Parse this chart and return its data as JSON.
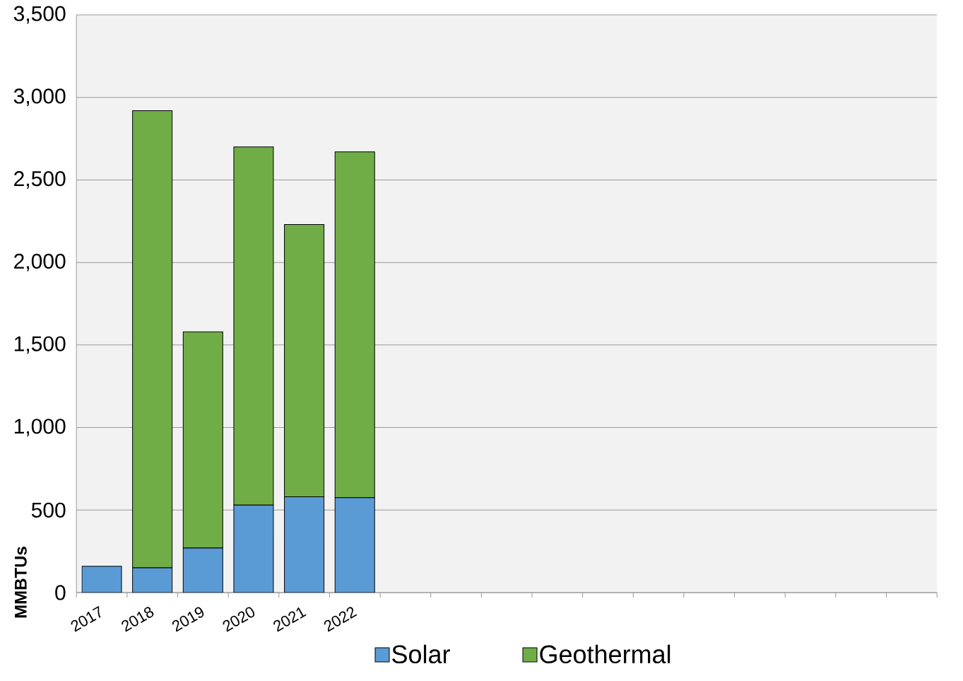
{
  "chart_data": {
    "type": "bar",
    "stacked": true,
    "ylabel": "MMBTUs",
    "categories": [
      "2017",
      "2018",
      "2019",
      "2020",
      "2021",
      "2022",
      null,
      null,
      null,
      null,
      null,
      null,
      null,
      null,
      null,
      null,
      null
    ],
    "series": [
      {
        "name": "Solar",
        "color": "#5b9bd5",
        "values": [
          160,
          150,
          270,
          530,
          580,
          575,
          null,
          null,
          null,
          null,
          null,
          null,
          null,
          null,
          null,
          null,
          null
        ]
      },
      {
        "name": "Geothermal",
        "color": "#70ad47",
        "values": [
          null,
          2770,
          1310,
          2170,
          1650,
          2095,
          null,
          null,
          null,
          null,
          null,
          null,
          null,
          null,
          null,
          null,
          null
        ]
      }
    ],
    "ylim": [
      0,
      3500
    ],
    "yticks": [
      0,
      {
        "value": 500,
        "label": "500"
      },
      {
        "value": 1000,
        "label": "1,000"
      },
      {
        "value": 1500,
        "label": "1,500"
      },
      {
        "value": 2000,
        "label": "2,000"
      },
      {
        "value": 2500,
        "label": "2,500"
      },
      {
        "value": 3000,
        "label": "3,000"
      },
      {
        "value": 3500,
        "label": "3,500"
      }
    ],
    "grid": "y",
    "legend": "bottom"
  }
}
